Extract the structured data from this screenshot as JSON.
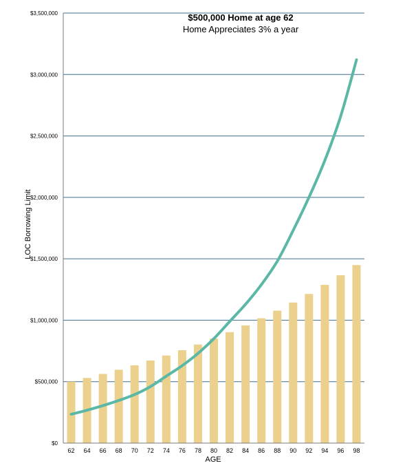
{
  "chart_data": {
    "type": "bar+line",
    "title": "$500,000  Home at age 62",
    "subtitle": "Home Appreciates 3% a year",
    "xlabel": "AGE",
    "ylabel": "LOC Borrowing Limit",
    "ylim": [
      0,
      3500000
    ],
    "yticks": [
      "$0",
      "$500,000",
      "$1,000,000",
      "$1,500,000",
      "$2,000,000",
      "$2,500,000",
      "$3,000,000",
      "$3,500,000"
    ],
    "grid": true,
    "categories": [
      "62",
      "64",
      "66",
      "68",
      "70",
      "72",
      "74",
      "76",
      "78",
      "80",
      "82",
      "84",
      "86",
      "88",
      "90",
      "92",
      "94",
      "96",
      "98"
    ],
    "series": [
      {
        "kind": "bar",
        "color": "#ecd08e",
        "values": [
          500000,
          530000,
          563000,
          597000,
          633000,
          672000,
          713000,
          756000,
          802000,
          851000,
          903000,
          958000,
          1016000,
          1078000,
          1144000,
          1214000,
          1288000,
          1366000,
          1449000
        ]
      },
      {
        "kind": "line",
        "color": "#5bb8a6",
        "values": [
          235000,
          268000,
          305000,
          347000,
          395000,
          460000,
          545000,
          630000,
          730000,
          850000,
          990000,
          1130000,
          1290000,
          1480000,
          1730000,
          2000000,
          2300000,
          2660000,
          3120000
        ]
      }
    ]
  }
}
